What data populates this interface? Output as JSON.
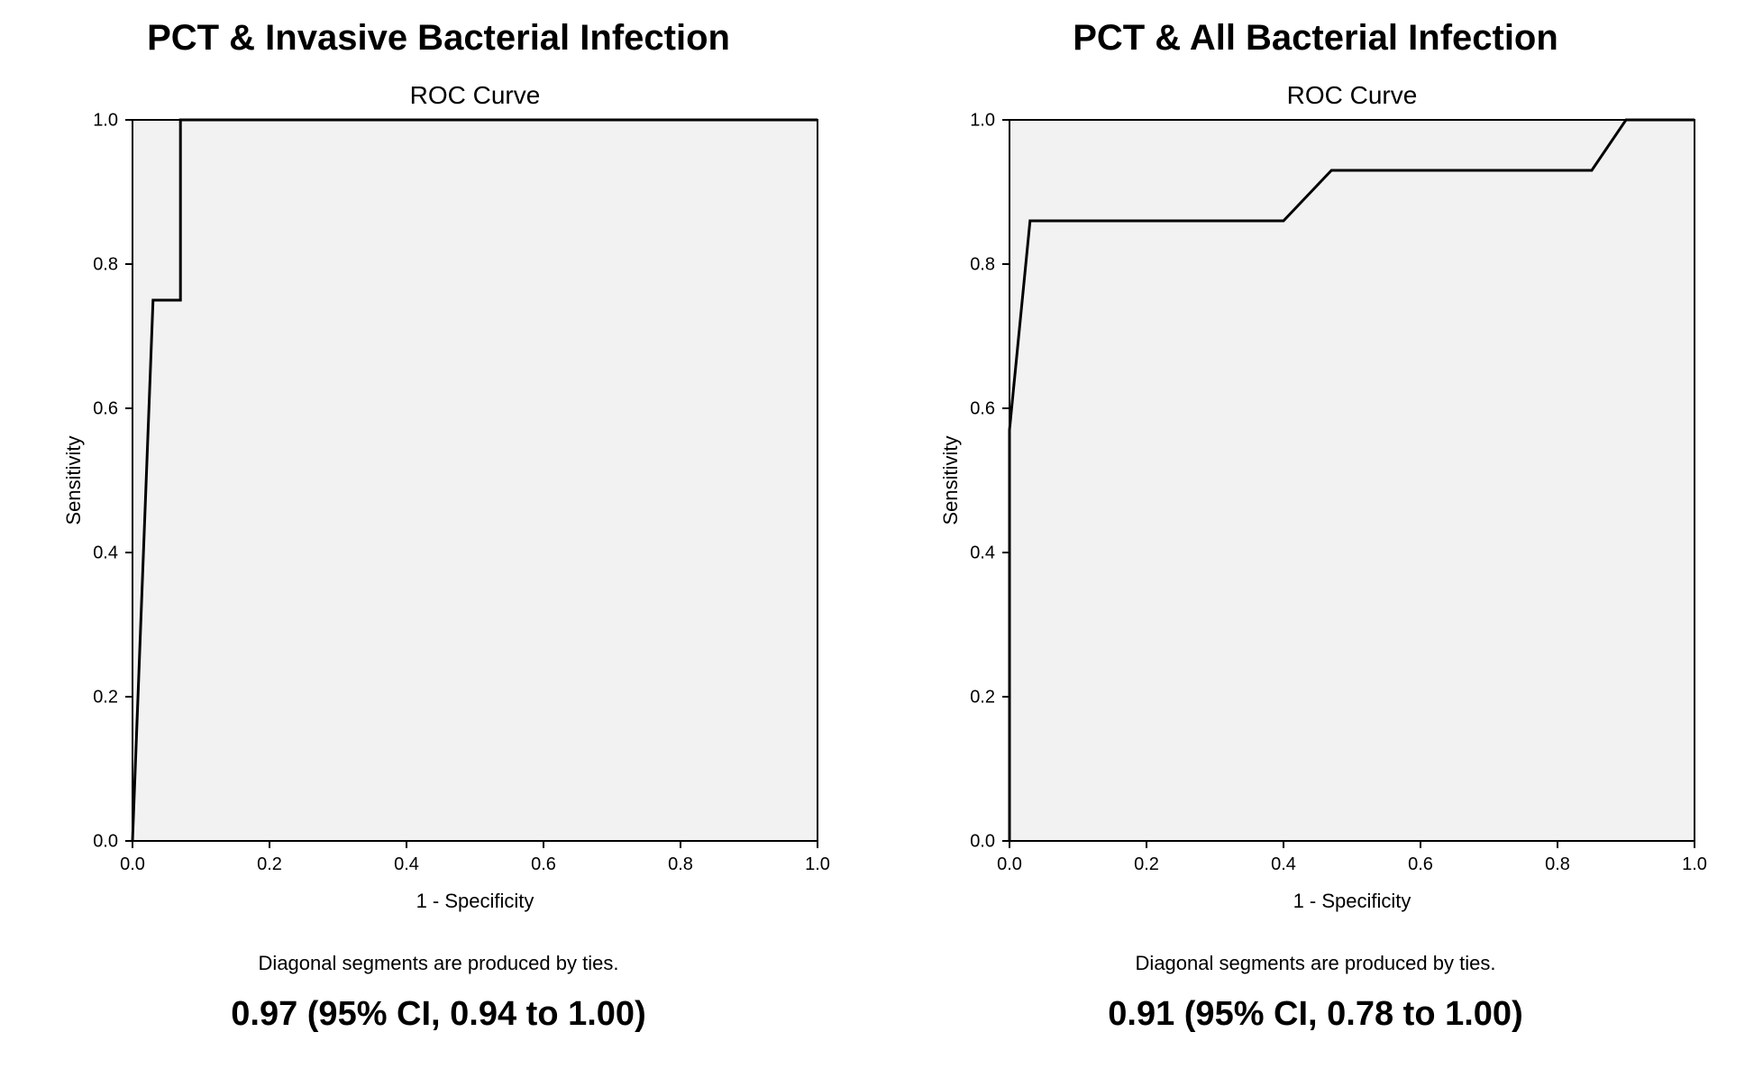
{
  "layout": {
    "panel_heading_fontsize": 40,
    "chart_title_fontsize": 28,
    "axis_label_fontsize": 22,
    "tick_fontsize": 20,
    "footnote_fontsize": 22,
    "auc_fontsize": 38,
    "colors": {
      "plot_bg": "#f2f2f2",
      "plot_border": "#000000",
      "roc_line": "#000000",
      "tick_color": "#000000",
      "text_color": "#000000",
      "page_bg": "#ffffff"
    },
    "line_width": 3,
    "border_width": 2,
    "tick_length": 8
  },
  "panels": [
    {
      "key": "left",
      "heading": "PCT & Invasive Bacterial Infection",
      "chart": {
        "type": "roc",
        "title": "ROC Curve",
        "xlabel": "1 - Specificity",
        "ylabel": "Sensitivity",
        "xlim": [
          0.0,
          1.0
        ],
        "ylim": [
          0.0,
          1.0
        ],
        "xticks": [
          0.0,
          0.2,
          0.4,
          0.6,
          0.8,
          1.0
        ],
        "yticks": [
          0.0,
          0.2,
          0.4,
          0.6,
          0.8,
          1.0
        ],
        "roc_points": [
          [
            0.0,
            0.0
          ],
          [
            0.03,
            0.75
          ],
          [
            0.07,
            0.75
          ],
          [
            0.07,
            1.0
          ],
          [
            1.0,
            1.0
          ]
        ]
      },
      "footnote": "Diagonal segments are produced by ties.",
      "auc_text": "0.97 (95% CI, 0.94 to 1.00)"
    },
    {
      "key": "right",
      "heading": "PCT & All Bacterial Infection",
      "chart": {
        "type": "roc",
        "title": "ROC Curve",
        "xlabel": "1 - Specificity",
        "ylabel": "Sensitivity",
        "xlim": [
          0.0,
          1.0
        ],
        "ylim": [
          0.0,
          1.0
        ],
        "xticks": [
          0.0,
          0.2,
          0.4,
          0.6,
          0.8,
          1.0
        ],
        "yticks": [
          0.0,
          0.2,
          0.4,
          0.6,
          0.8,
          1.0
        ],
        "roc_points": [
          [
            0.0,
            0.0
          ],
          [
            0.0,
            0.57
          ],
          [
            0.03,
            0.86
          ],
          [
            0.4,
            0.86
          ],
          [
            0.47,
            0.93
          ],
          [
            0.85,
            0.93
          ],
          [
            0.9,
            1.0
          ],
          [
            1.0,
            1.0
          ]
        ]
      },
      "footnote": "Diagonal segments are produced by ties.",
      "auc_text": "0.91 (95% CI, 0.78 to 1.00)"
    }
  ]
}
